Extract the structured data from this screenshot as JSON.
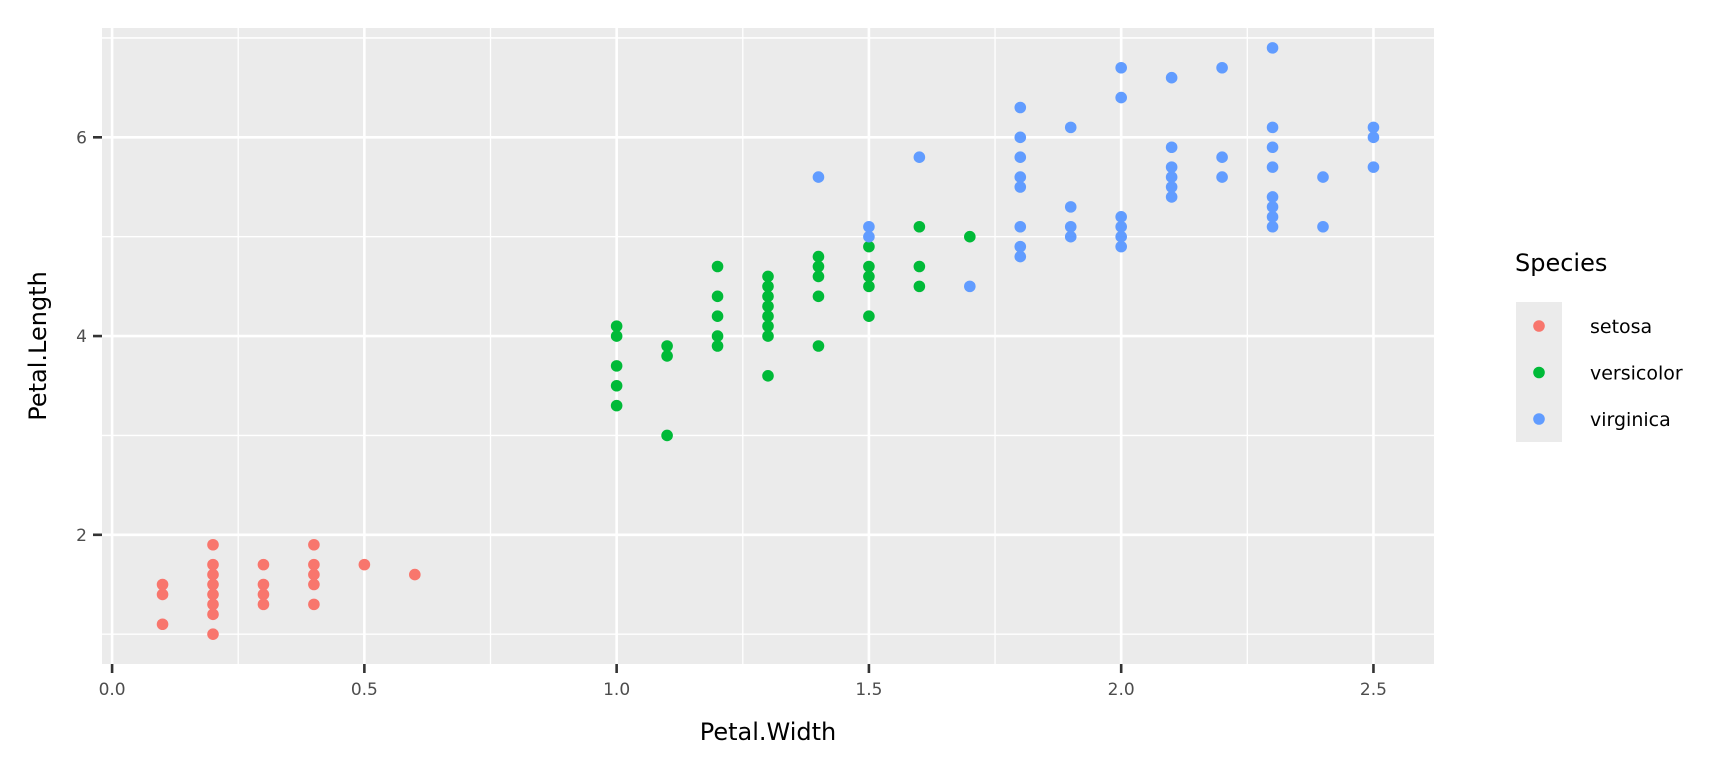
{
  "chart_data": {
    "type": "scatter",
    "title": "",
    "xlabel": "Petal.Width",
    "ylabel": "Petal.Length",
    "xlim": [
      -0.02,
      2.62
    ],
    "ylim": [
      0.7,
      7.1
    ],
    "x_ticks": [
      0.0,
      0.5,
      1.0,
      1.5,
      2.0,
      2.5
    ],
    "x_tick_labels": [
      "0.0",
      "0.5",
      "1.0",
      "1.5",
      "2.0",
      "2.5"
    ],
    "y_ticks": [
      2,
      4,
      6
    ],
    "y_tick_labels": [
      "2",
      "4",
      "6"
    ],
    "grid": true,
    "background": "#EBEBEB",
    "legend": {
      "title": "Species",
      "position": "right"
    },
    "series": [
      {
        "name": "setosa",
        "color": "#F8766D",
        "points": [
          [
            0.1,
            1.1
          ],
          [
            0.1,
            1.4
          ],
          [
            0.1,
            1.5
          ],
          [
            0.2,
            1.0
          ],
          [
            0.2,
            1.2
          ],
          [
            0.2,
            1.3
          ],
          [
            0.2,
            1.4
          ],
          [
            0.2,
            1.5
          ],
          [
            0.2,
            1.6
          ],
          [
            0.2,
            1.7
          ],
          [
            0.2,
            1.9
          ],
          [
            0.3,
            1.3
          ],
          [
            0.3,
            1.4
          ],
          [
            0.3,
            1.5
          ],
          [
            0.3,
            1.7
          ],
          [
            0.4,
            1.3
          ],
          [
            0.4,
            1.5
          ],
          [
            0.4,
            1.6
          ],
          [
            0.4,
            1.7
          ],
          [
            0.4,
            1.9
          ],
          [
            0.5,
            1.7
          ],
          [
            0.6,
            1.6
          ]
        ]
      },
      {
        "name": "versicolor",
        "color": "#00BA38",
        "points": [
          [
            1.0,
            3.3
          ],
          [
            1.0,
            3.5
          ],
          [
            1.0,
            3.7
          ],
          [
            1.0,
            4.0
          ],
          [
            1.0,
            4.1
          ],
          [
            1.1,
            3.0
          ],
          [
            1.1,
            3.8
          ],
          [
            1.1,
            3.9
          ],
          [
            1.2,
            3.9
          ],
          [
            1.2,
            4.0
          ],
          [
            1.2,
            4.2
          ],
          [
            1.2,
            4.4
          ],
          [
            1.2,
            4.7
          ],
          [
            1.3,
            3.6
          ],
          [
            1.3,
            4.0
          ],
          [
            1.3,
            4.1
          ],
          [
            1.3,
            4.2
          ],
          [
            1.3,
            4.3
          ],
          [
            1.3,
            4.4
          ],
          [
            1.3,
            4.5
          ],
          [
            1.3,
            4.6
          ],
          [
            1.4,
            3.9
          ],
          [
            1.4,
            4.4
          ],
          [
            1.4,
            4.6
          ],
          [
            1.4,
            4.7
          ],
          [
            1.4,
            4.8
          ],
          [
            1.5,
            4.2
          ],
          [
            1.5,
            4.5
          ],
          [
            1.5,
            4.6
          ],
          [
            1.5,
            4.7
          ],
          [
            1.5,
            4.9
          ],
          [
            1.6,
            4.5
          ],
          [
            1.6,
            4.7
          ],
          [
            1.6,
            5.1
          ],
          [
            1.7,
            5.0
          ]
        ]
      },
      {
        "name": "virginica",
        "color": "#619CFF",
        "points": [
          [
            1.4,
            5.6
          ],
          [
            1.5,
            5.0
          ],
          [
            1.5,
            5.1
          ],
          [
            1.6,
            5.8
          ],
          [
            1.7,
            4.5
          ],
          [
            1.8,
            4.8
          ],
          [
            1.8,
            4.9
          ],
          [
            1.8,
            5.1
          ],
          [
            1.8,
            5.5
          ],
          [
            1.8,
            5.6
          ],
          [
            1.8,
            5.8
          ],
          [
            1.8,
            6.0
          ],
          [
            1.8,
            6.3
          ],
          [
            1.9,
            5.0
          ],
          [
            1.9,
            5.1
          ],
          [
            1.9,
            5.3
          ],
          [
            1.9,
            6.1
          ],
          [
            2.0,
            4.9
          ],
          [
            2.0,
            5.0
          ],
          [
            2.0,
            5.1
          ],
          [
            2.0,
            5.2
          ],
          [
            2.0,
            6.4
          ],
          [
            2.0,
            6.7
          ],
          [
            2.1,
            5.4
          ],
          [
            2.1,
            5.5
          ],
          [
            2.1,
            5.6
          ],
          [
            2.1,
            5.7
          ],
          [
            2.1,
            5.9
          ],
          [
            2.1,
            6.6
          ],
          [
            2.2,
            5.6
          ],
          [
            2.2,
            5.8
          ],
          [
            2.2,
            6.7
          ],
          [
            2.3,
            5.1
          ],
          [
            2.3,
            5.2
          ],
          [
            2.3,
            5.3
          ],
          [
            2.3,
            5.4
          ],
          [
            2.3,
            5.7
          ],
          [
            2.3,
            5.9
          ],
          [
            2.3,
            6.1
          ],
          [
            2.3,
            6.9
          ],
          [
            2.4,
            5.1
          ],
          [
            2.4,
            5.6
          ],
          [
            2.5,
            5.7
          ],
          [
            2.5,
            6.0
          ],
          [
            2.5,
            6.1
          ]
        ]
      }
    ]
  }
}
